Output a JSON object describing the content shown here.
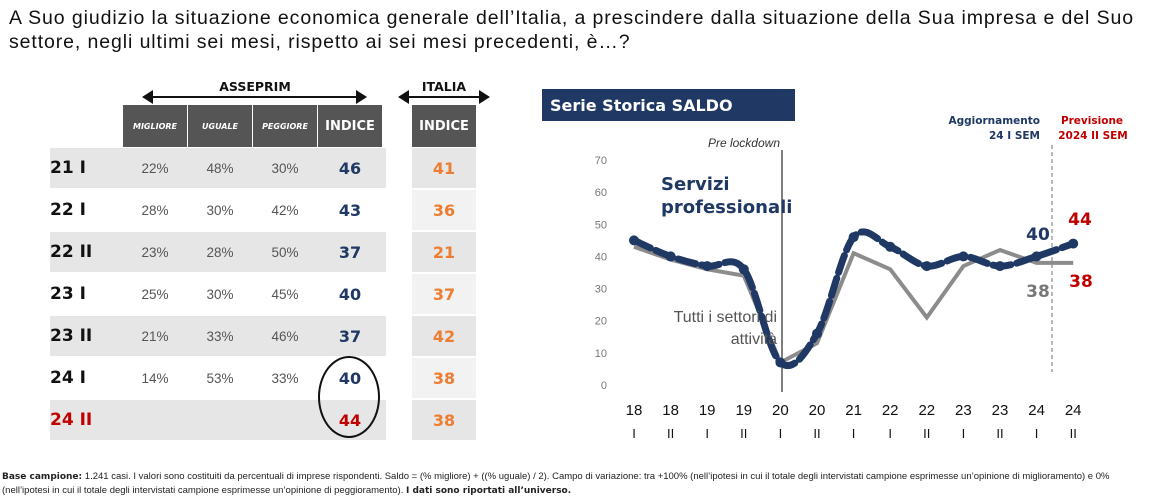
{
  "question": "A Suo giudizio la situazione economica generale dell’Italia, a prescindere dalla situazione della Sua impresa e del Suo settore, negli ultimi sei mesi, rispetto ai sei mesi precedenti, è…?",
  "table": {
    "asseprim_label": "ASSEPRIM",
    "italia_label": "ITALIA",
    "columns": [
      "MIGLIORE",
      "UGUALE",
      "PEGGIORE",
      "INDICE"
    ],
    "italia_column": "INDICE",
    "rows": [
      {
        "label": "21 I",
        "migliore": "22%",
        "uguale": "48%",
        "peggiore": "30%",
        "indice": "46",
        "italia": "41"
      },
      {
        "label": "22 I",
        "migliore": "28%",
        "uguale": "30%",
        "peggiore": "42%",
        "indice": "43",
        "italia": "36"
      },
      {
        "label": "22 II",
        "migliore": "23%",
        "uguale": "28%",
        "peggiore": "50%",
        "indice": "37",
        "italia": "21"
      },
      {
        "label": "23 I",
        "migliore": "25%",
        "uguale": "30%",
        "peggiore": "45%",
        "indice": "40",
        "italia": "37"
      },
      {
        "label": "23 II",
        "migliore": "21%",
        "uguale": "33%",
        "peggiore": "46%",
        "indice": "37",
        "italia": "42"
      },
      {
        "label": "24 I",
        "migliore": "14%",
        "uguale": "53%",
        "peggiore": "33%",
        "indice": "40",
        "italia": "38"
      },
      {
        "label": "24 II",
        "migliore": "",
        "uguale": "",
        "peggiore": "",
        "indice": "44",
        "italia": "38"
      }
    ]
  },
  "colors": {
    "navy": "#1f3864",
    "grey_series": "#8c8c8c",
    "orange": "#ed7d31",
    "red": "#c00000",
    "header_grey": "#555555",
    "row_grey": "#e6e6e6"
  },
  "chart_data": {
    "type": "line",
    "title": "Serie Storica SALDO",
    "x_top": [
      "18",
      "18",
      "19",
      "19",
      "20",
      "20",
      "21",
      "22",
      "22",
      "23",
      "23",
      "24",
      "24"
    ],
    "x_bottom": [
      "I",
      "II",
      "I",
      "II",
      "I",
      "II",
      "I",
      "I",
      "II",
      "I",
      "II",
      "I",
      "II"
    ],
    "ylim": [
      0,
      70
    ],
    "yticks": [
      0,
      10,
      20,
      30,
      40,
      50,
      60,
      70
    ],
    "series": [
      {
        "name": "Servizi professionali",
        "values": [
          45,
          40,
          37,
          36,
          7,
          16,
          46,
          43,
          37,
          40,
          37,
          40,
          44
        ]
      },
      {
        "name": "Tutti i settori di attività",
        "values": [
          43,
          39,
          36,
          34,
          7,
          13,
          41,
          36,
          21,
          37,
          42,
          38,
          38
        ]
      }
    ],
    "annotations": {
      "pre_lockdown": "Pre lockdown",
      "aggiornamento_line1": "Aggiornamento",
      "aggiornamento_line2": "24 I SEM",
      "previsione_line1": "Previsione",
      "previsione_line2": "2024 II SEM",
      "servizi_line1": "Servizi",
      "servizi_line2": "professionali",
      "tutti_line1": "Tutti i settori di",
      "tutti_line2": "attività",
      "label_navy_24i": "40",
      "label_red_24ii": "44",
      "label_grey_24i": "38",
      "label_red_grey_24ii": "38"
    }
  },
  "footer": {
    "base_label": "Base campione:",
    "text": " 1.241 casi. I valori sono costituiti da percentuali di imprese rispondenti. Saldo = (% migliore) + ((% uguale) / 2). Campo di variazione: tra +100% (nell’ipotesi in cui il totale degli intervistati campione esprimesse un’opinione di miglioramento) e 0% (nell’ipotesi in cui il totale degli intervistati campione esprimesse un’opinione di peggioramento). ",
    "bold_tail": "I dati sono riportati all’universo."
  }
}
